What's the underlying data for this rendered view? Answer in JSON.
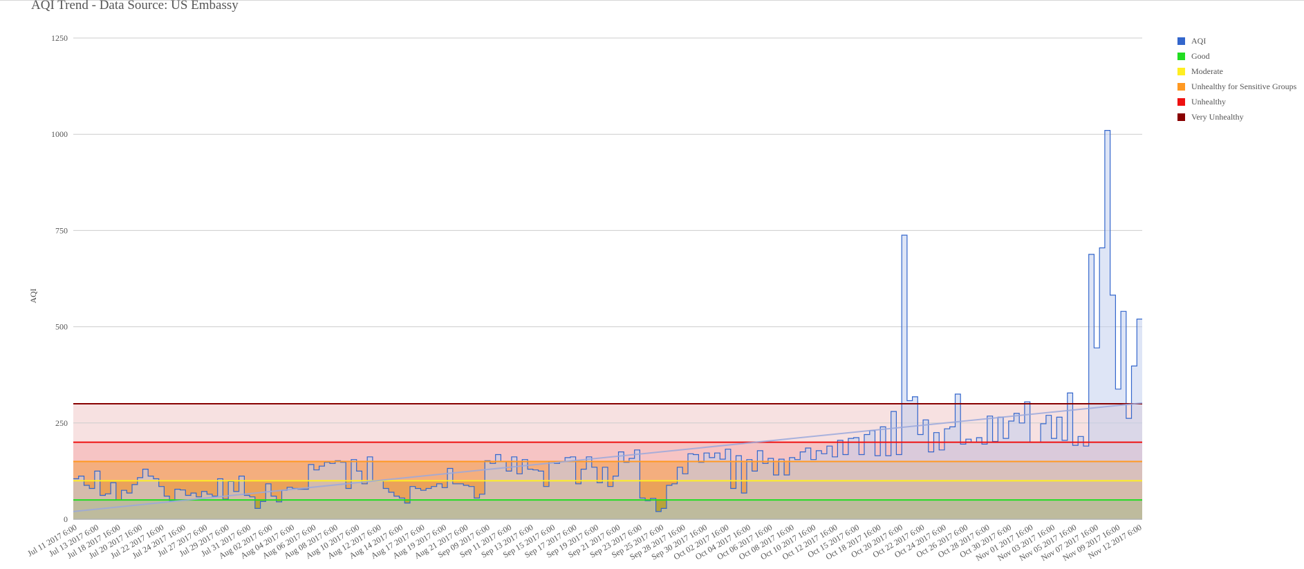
{
  "chart_data": {
    "type": "area",
    "title": "AQI Trend - Data Source: US Embassy",
    "ylabel": "AQI",
    "xlabel": "",
    "ylim": [
      0,
      1250
    ],
    "yticks": [
      0,
      250,
      500,
      750,
      1000,
      1250
    ],
    "grid": true,
    "legend_position": "top-right",
    "colors": {
      "aqi_line": "#3366cc",
      "aqi_fill": "#c3cfee",
      "good": "#22dd22",
      "moderate": "#ffee22",
      "usg": "#ff9922",
      "unhealthy": "#ee1111",
      "very_unhealthy": "#880000",
      "trend": "#9aa8dc"
    },
    "x_tick_labels": [
      "Jul 11 2017 6:00",
      "Jul 13 2017 6:00",
      "Jul 18 2017 16:00",
      "Jul 20 2017 16:00",
      "Jul 22 2017 16:00",
      "Jul 24 2017 16:00",
      "Jul 27 2017 6:00",
      "Jul 29 2017 6:00",
      "Jul 31 2017 6:00",
      "Aug 02 2017 6:00",
      "Aug 04 2017 6:00",
      "Aug 06 2017 6:00",
      "Aug 08 2017 6:00",
      "Aug 10 2017 6:00",
      "Aug 12 2017 6:00",
      "Aug 14 2017 6:00",
      "Aug 17 2017 6:00",
      "Aug 19 2017 6:00",
      "Aug 21 2017 6:00",
      "Sep 09 2017 6:00",
      "Sep 11 2017 6:00",
      "Sep 13 2017 6:00",
      "Sep 15 2017 6:00",
      "Sep 17 2017 6:00",
      "Sep 19 2017 6:00",
      "Sep 21 2017 6:00",
      "Sep 23 2017 6:00",
      "Sep 25 2017 6:00",
      "Sep 28 2017 16:00",
      "Sep 30 2017 16:00",
      "Oct 02 2017 16:00",
      "Oct 04 2017 16:00",
      "Oct 06 2017 16:00",
      "Oct 08 2017 16:00",
      "Oct 10 2017 16:00",
      "Oct 12 2017 16:00",
      "Oct 15 2017 6:00",
      "Oct 18 2017 16:00",
      "Oct 20 2017 6:00",
      "Oct 22 2017 6:00",
      "Oct 24 2017 6:00",
      "Oct 26 2017 6:00",
      "Oct 28 2017 6:00",
      "Oct 30 2017 6:00",
      "Nov 01 2017 16:00",
      "Nov 03 2017 16:00",
      "Nov 05 2017 16:00",
      "Nov 07 2017 16:00",
      "Nov 09 2017 16:00",
      "Nov 12 2017 6:00"
    ],
    "thresholds": [
      {
        "name": "Good",
        "value": 50
      },
      {
        "name": "Moderate",
        "value": 100
      },
      {
        "name": "Unhealthy for Sensitive Groups",
        "value": 150
      },
      {
        "name": "Unhealthy",
        "value": 200
      },
      {
        "name": "Very Unhealthy",
        "value": 300
      }
    ],
    "trend_line": {
      "start": 20,
      "end": 302
    },
    "series": [
      {
        "name": "AQI",
        "values": [
          105,
          112,
          88,
          80,
          125,
          62,
          66,
          95,
          50,
          75,
          68,
          90,
          108,
          130,
          112,
          105,
          85,
          60,
          48,
          78,
          76,
          62,
          68,
          58,
          72,
          65,
          60,
          105,
          52,
          98,
          72,
          112,
          62,
          58,
          28,
          46,
          92,
          60,
          45,
          75,
          83,
          80,
          78,
          78,
          142,
          128,
          138,
          148,
          145,
          152,
          148,
          80,
          155,
          125,
          92,
          162,
          100,
          100,
          80,
          70,
          60,
          55,
          42,
          85,
          80,
          75,
          80,
          85,
          92,
          82,
          132,
          92,
          92,
          88,
          85,
          55,
          65,
          152,
          145,
          168,
          150,
          125,
          162,
          118,
          155,
          130,
          128,
          125,
          85,
          150,
          145,
          150,
          160,
          162,
          92,
          130,
          162,
          135,
          95,
          135,
          85,
          112,
          175,
          148,
          158,
          180,
          55,
          48,
          54,
          20,
          28,
          88,
          92,
          135,
          118,
          170,
          168,
          148,
          172,
          160,
          172,
          156,
          182,
          80,
          165,
          68,
          155,
          125,
          178,
          145,
          158,
          115,
          156,
          115,
          160,
          155,
          175,
          185,
          155,
          178,
          170,
          190,
          162,
          205,
          168,
          210,
          212,
          168,
          220,
          230,
          165,
          240,
          165,
          280,
          168,
          738,
          308,
          318,
          220,
          258,
          175,
          225,
          180,
          235,
          240,
          325,
          195,
          208,
          200,
          212,
          195,
          268,
          202,
          265,
          210,
          255,
          275,
          250,
          305,
          200,
          200,
          248,
          270,
          210,
          265,
          205,
          328,
          192,
          215,
          190,
          688,
          445,
          705,
          1010,
          582,
          338,
          540,
          262,
          398,
          520
        ]
      }
    ],
    "legend": [
      {
        "label": "AQI",
        "color": "#3366cc"
      },
      {
        "label": "Good",
        "color": "#22dd22"
      },
      {
        "label": "Moderate",
        "color": "#ffee22"
      },
      {
        "label": "Unhealthy for Sensitive Groups",
        "color": "#ff9922"
      },
      {
        "label": "Unhealthy",
        "color": "#ee1111"
      },
      {
        "label": "Very Unhealthy",
        "color": "#880000"
      }
    ]
  }
}
